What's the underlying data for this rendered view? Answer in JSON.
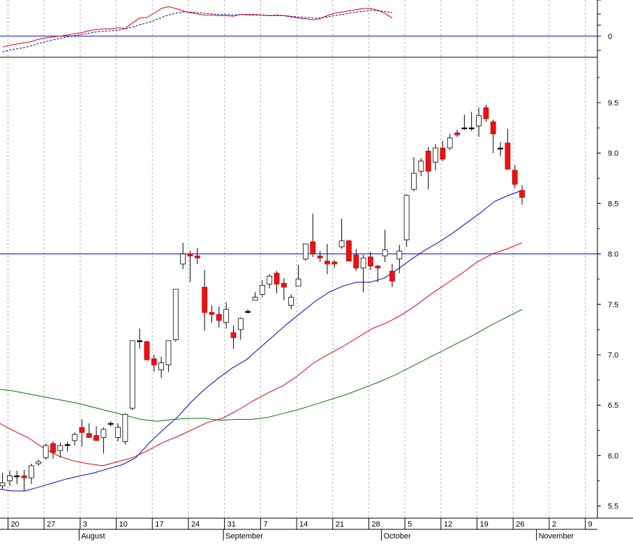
{
  "chart_data": [
    {
      "type": "line",
      "panel": "indicator",
      "y_ticks": [
        "0"
      ],
      "y_tick_values": [
        0
      ],
      "ylim": [
        -0.35,
        0.6
      ],
      "reference_line": 0,
      "series": [
        {
          "style": "solid",
          "color": "#dd0000",
          "values": [
            -0.18,
            -0.15,
            -0.13,
            -0.11,
            -0.09,
            -0.05,
            -0.03,
            -0.01,
            0.0,
            0.02,
            0.04,
            0.06,
            0.09,
            0.11,
            0.12,
            0.12,
            0.14,
            0.13,
            0.22,
            0.3,
            0.31,
            0.38,
            0.46,
            0.49,
            0.46,
            0.42,
            0.39,
            0.37,
            0.35,
            0.35,
            0.34,
            0.34,
            0.33,
            0.36,
            0.36,
            0.36,
            0.35,
            0.34,
            0.35,
            0.34,
            0.32,
            0.3,
            0.29,
            0.27,
            0.29,
            0.34,
            0.38,
            0.4,
            0.42,
            0.44,
            0.46,
            0.46,
            0.43,
            0.38,
            0.3
          ]
        },
        {
          "style": "dashed",
          "color": "#0000aa",
          "values": [
            -0.26,
            -0.23,
            -0.21,
            -0.19,
            -0.16,
            -0.12,
            -0.09,
            -0.06,
            -0.04,
            -0.01,
            0.01,
            0.03,
            0.05,
            0.07,
            0.08,
            0.09,
            0.1,
            0.12,
            0.15,
            0.19,
            0.22,
            0.26,
            0.31,
            0.35,
            0.38,
            0.4,
            0.4,
            0.39,
            0.38,
            0.37,
            0.36,
            0.36,
            0.35,
            0.36,
            0.35,
            0.35,
            0.35,
            0.34,
            0.34,
            0.34,
            0.33,
            0.32,
            0.31,
            0.3,
            0.3,
            0.32,
            0.34,
            0.36,
            0.38,
            0.4,
            0.41,
            0.43,
            0.42,
            0.41,
            0.39
          ]
        }
      ]
    },
    {
      "type": "candlestick",
      "panel": "price",
      "y_ticks": [
        "5.5",
        "6.0",
        "6.5",
        "7.0",
        "7.5",
        "8.0",
        "8.5",
        "9.0",
        "9.5"
      ],
      "y_tick_values": [
        5.5,
        6.0,
        6.5,
        7.0,
        7.5,
        8.0,
        8.5,
        9.0,
        9.5
      ],
      "ylim": [
        5.38,
        9.95
      ],
      "horizontal_line": 8.0,
      "colors": {
        "up": "#ffffff",
        "down": "#ee1111",
        "doji": "#000000"
      },
      "ohlc": [
        [
          5.7,
          5.83,
          5.67,
          5.73
        ],
        [
          5.75,
          5.85,
          5.7,
          5.8
        ],
        [
          5.8,
          5.85,
          5.72,
          5.8
        ],
        [
          5.8,
          5.86,
          5.65,
          5.78
        ],
        [
          5.78,
          5.92,
          5.72,
          5.9
        ],
        [
          5.92,
          5.96,
          5.9,
          5.94
        ],
        [
          5.98,
          6.12,
          5.96,
          6.1
        ],
        [
          6.12,
          6.14,
          5.97,
          6.03
        ],
        [
          6.05,
          6.13,
          5.98,
          6.1
        ],
        [
          6.1,
          6.14,
          6.04,
          6.11
        ],
        [
          6.15,
          6.23,
          6.1,
          6.21
        ],
        [
          6.28,
          6.36,
          6.09,
          6.23
        ],
        [
          6.22,
          6.32,
          6.2,
          6.18
        ],
        [
          6.2,
          6.29,
          6.19,
          6.15
        ],
        [
          6.18,
          6.28,
          6.02,
          6.26
        ],
        [
          6.31,
          6.34,
          6.29,
          6.32
        ],
        [
          6.18,
          6.32,
          6.14,
          6.28
        ],
        [
          6.14,
          6.42,
          6.11,
          6.41
        ],
        [
          6.47,
          7.14,
          6.45,
          7.14
        ],
        [
          7.14,
          7.26,
          7.06,
          7.13
        ],
        [
          7.13,
          7.14,
          6.96,
          6.95
        ],
        [
          6.96,
          7.0,
          6.83,
          6.9
        ],
        [
          6.85,
          6.98,
          6.77,
          6.92
        ],
        [
          6.9,
          7.14,
          6.83,
          7.14
        ],
        [
          7.15,
          7.65,
          7.13,
          7.65
        ],
        [
          7.9,
          8.11,
          7.85,
          8.0
        ],
        [
          8.0,
          8.03,
          7.72,
          7.98
        ],
        [
          7.98,
          8.06,
          7.9,
          7.96
        ],
        [
          7.67,
          7.84,
          7.24,
          7.42
        ],
        [
          7.42,
          7.49,
          7.32,
          7.4
        ],
        [
          7.4,
          7.48,
          7.27,
          7.34
        ],
        [
          7.32,
          7.52,
          7.26,
          7.45
        ],
        [
          7.22,
          7.29,
          7.06,
          7.17
        ],
        [
          7.25,
          7.37,
          7.15,
          7.36
        ],
        [
          7.42,
          7.45,
          7.41,
          7.43
        ],
        [
          7.54,
          7.62,
          7.54,
          7.57
        ],
        [
          7.6,
          7.74,
          7.57,
          7.69
        ],
        [
          7.7,
          7.8,
          7.66,
          7.78
        ],
        [
          7.81,
          7.83,
          7.61,
          7.7
        ],
        [
          7.71,
          7.76,
          7.54,
          7.67
        ],
        [
          7.49,
          7.6,
          7.45,
          7.57
        ],
        [
          7.68,
          7.89,
          7.68,
          7.75
        ],
        [
          7.95,
          8.1,
          7.93,
          8.1
        ],
        [
          8.12,
          8.4,
          7.97,
          8.0
        ],
        [
          7.98,
          8.03,
          7.92,
          7.96
        ],
        [
          7.93,
          8.1,
          7.8,
          7.9
        ],
        [
          7.92,
          7.94,
          7.86,
          7.9
        ],
        [
          8.07,
          8.35,
          8.05,
          8.13
        ],
        [
          8.13,
          8.14,
          7.94,
          7.93
        ],
        [
          7.99,
          8.05,
          7.83,
          7.86
        ],
        [
          7.86,
          7.99,
          7.62,
          7.96
        ],
        [
          7.97,
          8.02,
          7.84,
          7.88
        ],
        [
          7.88,
          7.89,
          7.72,
          7.86
        ],
        [
          7.98,
          8.24,
          7.92,
          8.04
        ],
        [
          7.83,
          7.9,
          7.67,
          7.73
        ],
        [
          7.95,
          8.09,
          7.81,
          8.03
        ],
        [
          8.14,
          8.59,
          8.07,
          8.58
        ],
        [
          8.64,
          8.96,
          8.62,
          8.8
        ],
        [
          8.82,
          8.95,
          8.77,
          8.92
        ],
        [
          9.02,
          9.06,
          8.64,
          8.82
        ],
        [
          8.91,
          9.09,
          8.83,
          9.05
        ],
        [
          9.05,
          9.12,
          8.92,
          8.94
        ],
        [
          9.05,
          9.19,
          9.03,
          9.15
        ],
        [
          9.2,
          9.23,
          9.16,
          9.18
        ],
        [
          9.24,
          9.38,
          9.23,
          9.25
        ],
        [
          9.25,
          9.41,
          9.22,
          9.25
        ],
        [
          9.27,
          9.45,
          9.16,
          9.37
        ],
        [
          9.45,
          9.48,
          9.31,
          9.34
        ],
        [
          9.31,
          9.33,
          9.0,
          9.19
        ],
        [
          9.05,
          9.11,
          8.97,
          9.05
        ],
        [
          9.1,
          9.24,
          8.84,
          8.84
        ],
        [
          8.83,
          8.88,
          8.65,
          8.69
        ],
        [
          8.63,
          8.68,
          8.49,
          8.56
        ]
      ],
      "moving_averages": [
        {
          "color": "#0000cc",
          "values": [
            5.67,
            5.65,
            5.65,
            5.69,
            5.73,
            5.77,
            5.8,
            5.83,
            5.87,
            5.91,
            5.98,
            6.13,
            6.26,
            6.38,
            6.53,
            6.66,
            6.77,
            6.87,
            6.95,
            7.07,
            7.19,
            7.31,
            7.42,
            7.53,
            7.62,
            7.68,
            7.72,
            7.72,
            7.76,
            7.85,
            7.95,
            8.04,
            8.12,
            8.21,
            8.31,
            8.41,
            8.52,
            8.58,
            8.63
          ]
        },
        {
          "color": "#dd0000",
          "values": [
            6.33,
            6.25,
            6.18,
            6.08,
            6.0,
            5.95,
            5.92,
            5.9,
            5.94,
            5.98,
            6.05,
            6.13,
            6.19,
            6.26,
            6.33,
            6.37,
            6.45,
            6.54,
            6.62,
            6.69,
            6.79,
            6.91,
            7.0,
            7.08,
            7.17,
            7.26,
            7.32,
            7.4,
            7.5,
            7.61,
            7.71,
            7.81,
            7.92,
            8.0,
            8.05,
            8.11
          ]
        },
        {
          "color": "#007700",
          "values": [
            6.66,
            6.64,
            6.61,
            6.58,
            6.55,
            6.52,
            6.48,
            6.44,
            6.4,
            6.36,
            6.34,
            6.36,
            6.37,
            6.37,
            6.35,
            6.36,
            6.36,
            6.38,
            6.42,
            6.46,
            6.51,
            6.56,
            6.61,
            6.67,
            6.73,
            6.8,
            6.88,
            6.96,
            7.04,
            7.12,
            7.2,
            7.29,
            7.37,
            7.45
          ]
        }
      ],
      "x_tick_labels": [
        "20",
        "27",
        "3",
        "10",
        "17",
        "24",
        "31",
        "7",
        "14",
        "21",
        "28",
        "5",
        "12",
        "19",
        "26",
        "2",
        "9"
      ],
      "month_labels": [
        "August",
        "September",
        "October",
        "November"
      ]
    }
  ]
}
